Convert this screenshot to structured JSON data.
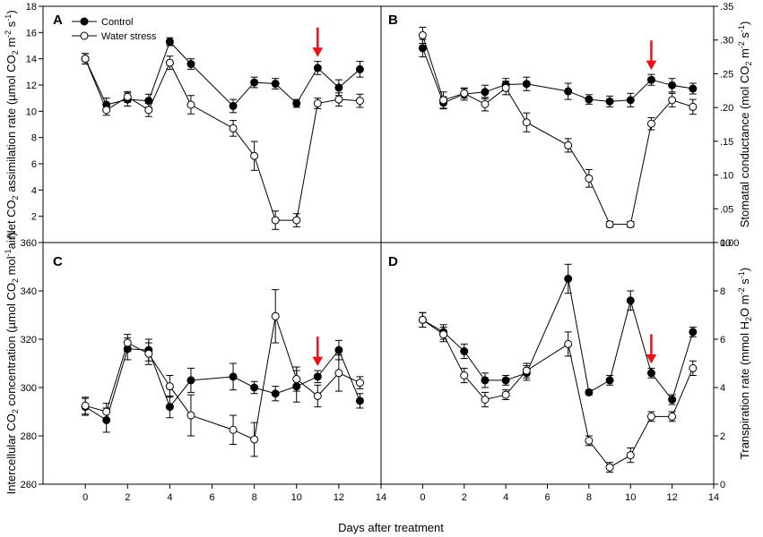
{
  "figure": {
    "xlabel": "Days after treatment",
    "legend": {
      "control": "Control",
      "stress": "Water stress",
      "placement": "top-left of panel A"
    },
    "colors": {
      "control": "#000000",
      "stress": "#ffffff",
      "arrow": "#e8141b"
    }
  },
  "chart_data": [
    {
      "panel": "A",
      "type": "line",
      "ylabel": {
        "main": "Net CO",
        "sub": "2",
        "rest": " assimilation rate (µmol CO",
        "sub2": "2",
        "rest2": " m",
        "sup": "-2",
        "rest3": " s",
        "sup2": "-1",
        "rest4": ")"
      },
      "y_axis_side": "left",
      "xlim": [
        -2,
        14
      ],
      "ylim": [
        0,
        18
      ],
      "yticks": [
        2,
        4,
        6,
        8,
        10,
        12,
        14,
        16,
        18
      ],
      "ytick_labels": [
        "2",
        "4",
        "6",
        "8",
        "10",
        "12",
        "14",
        "16",
        "18"
      ],
      "xticks": [],
      "arrow_x": 11,
      "series": [
        {
          "name": "Control",
          "x": [
            0,
            1,
            2,
            3,
            4,
            5,
            7,
            8,
            9,
            10,
            11,
            12,
            13
          ],
          "y": [
            14.0,
            10.5,
            10.9,
            10.8,
            15.3,
            13.6,
            10.4,
            12.2,
            12.1,
            10.6,
            13.3,
            11.8,
            13.2
          ],
          "err": [
            0.4,
            0.5,
            0.5,
            0.5,
            0.3,
            0.4,
            0.5,
            0.4,
            0.4,
            0.3,
            0.5,
            0.6,
            0.6
          ]
        },
        {
          "name": "Water stress",
          "x": [
            0,
            1,
            2,
            3,
            4,
            5,
            7,
            8,
            9,
            10,
            11,
            12,
            13
          ],
          "y": [
            14.0,
            10.1,
            11.1,
            10.1,
            13.7,
            10.5,
            8.7,
            6.6,
            1.7,
            1.7,
            10.6,
            10.9,
            10.8
          ],
          "err": [
            0.4,
            0.4,
            0.4,
            0.5,
            0.5,
            0.7,
            0.6,
            1.1,
            0.7,
            0.5,
            0.4,
            0.5,
            0.5
          ]
        }
      ]
    },
    {
      "panel": "B",
      "type": "line",
      "ylabel": {
        "main": "Stomatal conductance (mol CO",
        "sub": "2",
        "rest": " m",
        "sup": "-2",
        "rest2": " s",
        "sup2": "-1",
        "rest3": ")"
      },
      "y_axis_side": "right",
      "xlim": [
        -2,
        14
      ],
      "ylim": [
        0,
        0.35
      ],
      "yticks": [
        0,
        0.05,
        0.1,
        0.15,
        0.2,
        0.25,
        0.3,
        0.35
      ],
      "ytick_labels": [
        "0.00",
        ".05",
        ".10",
        ".15",
        ".20",
        ".25",
        ".30",
        ".35"
      ],
      "xticks": [],
      "arrow_x": 11,
      "series": [
        {
          "name": "Control",
          "x": [
            0,
            1,
            2,
            3,
            4,
            5,
            7,
            8,
            9,
            10,
            11,
            12,
            13
          ],
          "y": [
            0.288,
            0.207,
            0.22,
            0.223,
            0.234,
            0.235,
            0.224,
            0.212,
            0.209,
            0.211,
            0.241,
            0.233,
            0.228
          ],
          "err": [
            0.013,
            0.009,
            0.009,
            0.01,
            0.009,
            0.01,
            0.012,
            0.007,
            0.008,
            0.01,
            0.008,
            0.01,
            0.008
          ]
        },
        {
          "name": "Water stress",
          "x": [
            0,
            1,
            2,
            3,
            4,
            5,
            7,
            8,
            9,
            10,
            11,
            12,
            13
          ],
          "y": [
            0.307,
            0.211,
            0.221,
            0.205,
            0.229,
            0.178,
            0.144,
            0.095,
            0.027,
            0.027,
            0.176,
            0.211,
            0.201
          ],
          "err": [
            0.012,
            0.012,
            0.007,
            0.01,
            0.01,
            0.014,
            0.01,
            0.013,
            0.004,
            0.004,
            0.009,
            0.01,
            0.011
          ]
        }
      ]
    },
    {
      "panel": "C",
      "type": "line",
      "ylabel": {
        "main": "Intercellular CO",
        "sub": "2",
        "rest": " concentration (µmol CO",
        "sub2": "2",
        "rest2": " mol",
        "sup": "-1",
        "rest3": "air)"
      },
      "y_axis_side": "left",
      "xlim": [
        -2,
        14
      ],
      "ylim": [
        260,
        360
      ],
      "yticks": [
        260,
        280,
        300,
        320,
        340,
        360
      ],
      "ytick_labels": [
        "260",
        "280",
        "300",
        "320",
        "340",
        "360"
      ],
      "xticks": [
        0,
        2,
        4,
        6,
        8,
        10,
        12,
        14
      ],
      "arrow_x": 11,
      "series": [
        {
          "name": "Control",
          "x": [
            0,
            1,
            2,
            3,
            4,
            5,
            7,
            8,
            9,
            10,
            11,
            12,
            13
          ],
          "y": [
            292.0,
            286.5,
            316.0,
            315.5,
            292.0,
            303.0,
            304.5,
            300.0,
            297.5,
            300.5,
            304.5,
            315.5,
            294.5
          ],
          "err": [
            3.5,
            5.0,
            4.5,
            4.5,
            4.5,
            5.0,
            5.5,
            2.5,
            3.0,
            6.5,
            2.5,
            4.0,
            3.0
          ]
        },
        {
          "name": "Water stress",
          "x": [
            0,
            1,
            2,
            3,
            4,
            5,
            7,
            8,
            9,
            10,
            11,
            12,
            13
          ],
          "y": [
            292.5,
            290.0,
            318.5,
            314.0,
            300.5,
            288.5,
            282.5,
            278.5,
            329.5,
            303.5,
            296.5,
            306.0,
            302.0
          ],
          "err": [
            3.5,
            3.5,
            3.5,
            4.5,
            4.5,
            8.5,
            6.0,
            7.0,
            11.0,
            5.0,
            4.5,
            7.5,
            2.5
          ]
        }
      ]
    },
    {
      "panel": "D",
      "type": "line",
      "ylabel": {
        "main": "Transpiration rate (mmol H",
        "sub": "2",
        "rest": "O m",
        "sup": "-2",
        "rest2": " s",
        "sup2": "-1",
        "rest3": ")"
      },
      "y_axis_side": "right",
      "xlim": [
        -2,
        14
      ],
      "ylim": [
        0,
        10
      ],
      "yticks": [
        0,
        2,
        4,
        6,
        8,
        10
      ],
      "ytick_labels": [
        "0",
        "2",
        "4",
        "6",
        "8",
        "10"
      ],
      "xticks": [
        0,
        2,
        4,
        6,
        8,
        10,
        12,
        14
      ],
      "arrow_x": 11,
      "series": [
        {
          "name": "Control",
          "x": [
            0,
            1,
            2,
            3,
            4,
            5,
            7,
            8,
            9,
            10,
            11,
            12,
            13
          ],
          "y": [
            6.8,
            6.3,
            5.5,
            4.3,
            4.3,
            4.6,
            8.5,
            3.8,
            4.3,
            7.6,
            4.6,
            3.5,
            6.3
          ],
          "err": [
            0.3,
            0.3,
            0.3,
            0.3,
            0.2,
            0.3,
            0.6,
            0.1,
            0.2,
            0.4,
            0.2,
            0.2,
            0.2
          ]
        },
        {
          "name": "Water stress",
          "x": [
            0,
            1,
            2,
            3,
            4,
            5,
            7,
            8,
            9,
            10,
            11,
            12,
            13
          ],
          "y": [
            6.8,
            6.2,
            4.5,
            3.5,
            3.7,
            4.7,
            5.8,
            1.8,
            0.7,
            1.2,
            2.8,
            2.8,
            4.8
          ],
          "err": [
            0.3,
            0.3,
            0.3,
            0.3,
            0.2,
            0.3,
            0.5,
            0.2,
            0.2,
            0.3,
            0.2,
            0.2,
            0.3
          ]
        }
      ]
    }
  ]
}
